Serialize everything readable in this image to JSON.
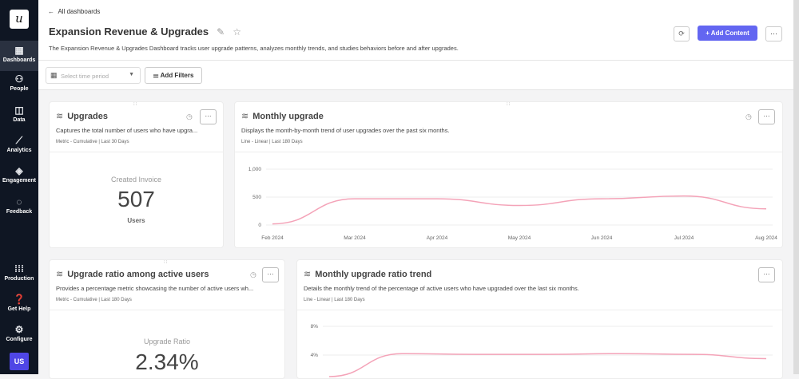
{
  "sidebar": {
    "logo": "u",
    "items": [
      {
        "label": "Dashboards",
        "icon": "dashboard-icon",
        "active": true
      },
      {
        "label": "People",
        "icon": "people-icon"
      },
      {
        "label": "Data",
        "icon": "data-icon"
      },
      {
        "label": "Analytics",
        "icon": "analytics-icon"
      },
      {
        "label": "Engagement",
        "icon": "engagement-icon"
      },
      {
        "label": "Feedback",
        "icon": "feedback-icon"
      },
      {
        "label": "Production",
        "icon": "grid-icon"
      },
      {
        "label": "Get Help",
        "icon": "help-icon"
      },
      {
        "label": "Configure",
        "icon": "gear-icon"
      }
    ],
    "avatar": "US"
  },
  "header": {
    "back": "All dashboards",
    "title": "Expansion Revenue & Upgrades",
    "description": "The Expansion Revenue & Upgrades Dashboard tracks user upgrade patterns, analyzes monthly trends, and studies behaviors before and after upgrades.",
    "add_content": "Add Content",
    "more": "···"
  },
  "filters": {
    "time_placeholder": "Select time period",
    "add_filters": "Add Filters"
  },
  "cards": [
    {
      "title": "Upgrades",
      "description": "Captures the total number of users who have upgra...",
      "meta": "Metric - Cumulative | Last 30 Days",
      "metric_label": "Created Invoice",
      "metric_value": "507",
      "metric_unit": "Users"
    },
    {
      "title": "Monthly upgrade",
      "description": "Displays the month-by-month trend of user upgrades over the past six months.",
      "meta": "Line - Linear | Last 180 Days"
    },
    {
      "title": "Upgrade ratio among active users",
      "description": "Provides a percentage metric showcasing the number of active users wh...",
      "meta": "Metric - Cumulative | Last 180 Days",
      "metric_label": "Upgrade Ratio",
      "metric_value": "2.34%"
    },
    {
      "title": "Monthly upgrade ratio trend",
      "description": "Details the monthly trend of the percentage of active users who have upgraded over the last six months.",
      "meta": "Line - Linear | Last 180 Days"
    }
  ],
  "colors": {
    "accent": "#6366f1",
    "line": "#f4a3b8",
    "sidebar": "#0f1623"
  },
  "chart_data": [
    {
      "type": "line",
      "categories": [
        "Feb 2024",
        "Mar 2024",
        "Apr 2024",
        "May 2024",
        "Jun 2024",
        "Jul 2024",
        "Aug 2024"
      ],
      "values": [
        20,
        470,
        470,
        350,
        470,
        520,
        290
      ],
      "yticks": [
        "0",
        "500",
        "1,000"
      ],
      "ylim": [
        0,
        1000
      ],
      "grid": true
    },
    {
      "type": "line",
      "values": [
        1,
        4.2,
        4.1,
        4.1,
        4.2,
        4.1,
        3.5
      ],
      "yticks": [
        "4%",
        "8%"
      ],
      "ylim": [
        0,
        8
      ],
      "grid": true
    }
  ]
}
